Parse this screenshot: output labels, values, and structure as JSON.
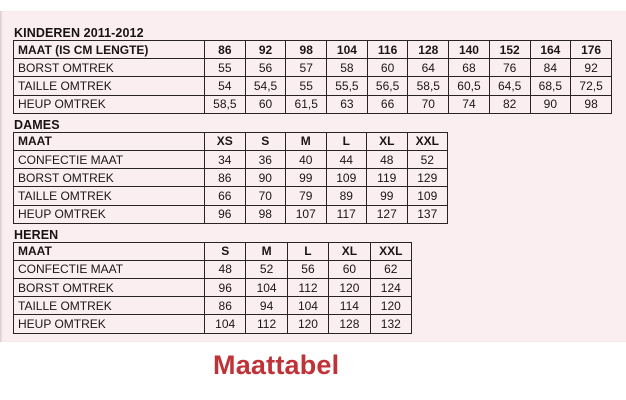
{
  "page": {
    "title": "Maattabel",
    "title_color": "#bf3338",
    "scan_background": "#fbeef0"
  },
  "sections": [
    {
      "label": "KINDEREN 2011-2012",
      "columns": [
        "MAAT (IS CM LENGTE)",
        "86",
        "92",
        "98",
        "104",
        "116",
        "128",
        "140",
        "152",
        "164",
        "176"
      ],
      "rows": [
        [
          "BORST OMTREK",
          "55",
          "56",
          "57",
          "58",
          "60",
          "64",
          "68",
          "76",
          "84",
          "92"
        ],
        [
          "TAILLE OMTREK",
          "54",
          "54,5",
          "55",
          "55,5",
          "56,5",
          "58,5",
          "60,5",
          "64,5",
          "68,5",
          "72,5"
        ],
        [
          "HEUP OMTREK",
          "58,5",
          "60",
          "61,5",
          "63",
          "66",
          "70",
          "74",
          "82",
          "90",
          "98"
        ]
      ]
    },
    {
      "label": "DAMES",
      "columns": [
        "MAAT",
        "XS",
        "S",
        "M",
        "L",
        "XL",
        "XXL"
      ],
      "rows": [
        [
          "CONFECTIE MAAT",
          "34",
          "36",
          "40",
          "44",
          "48",
          "52"
        ],
        [
          "BORST OMTREK",
          "86",
          "90",
          "99",
          "109",
          "119",
          "129"
        ],
        [
          "TAILLE OMTREK",
          "66",
          "70",
          "79",
          "89",
          "99",
          "109"
        ],
        [
          "HEUP OMTREK",
          "96",
          "98",
          "107",
          "117",
          "127",
          "137"
        ]
      ]
    },
    {
      "label": "HEREN",
      "columns": [
        "MAAT",
        "S",
        "M",
        "L",
        "XL",
        "XXL"
      ],
      "rows": [
        [
          "CONFECTIE MAAT",
          "48",
          "52",
          "56",
          "60",
          "62"
        ],
        [
          "BORST OMTREK",
          "96",
          "104",
          "112",
          "120",
          "124"
        ],
        [
          "TAILLE OMTREK",
          "86",
          "94",
          "104",
          "114",
          "120"
        ],
        [
          "HEUP OMTREK",
          "104",
          "112",
          "120",
          "128",
          "132"
        ]
      ]
    }
  ]
}
